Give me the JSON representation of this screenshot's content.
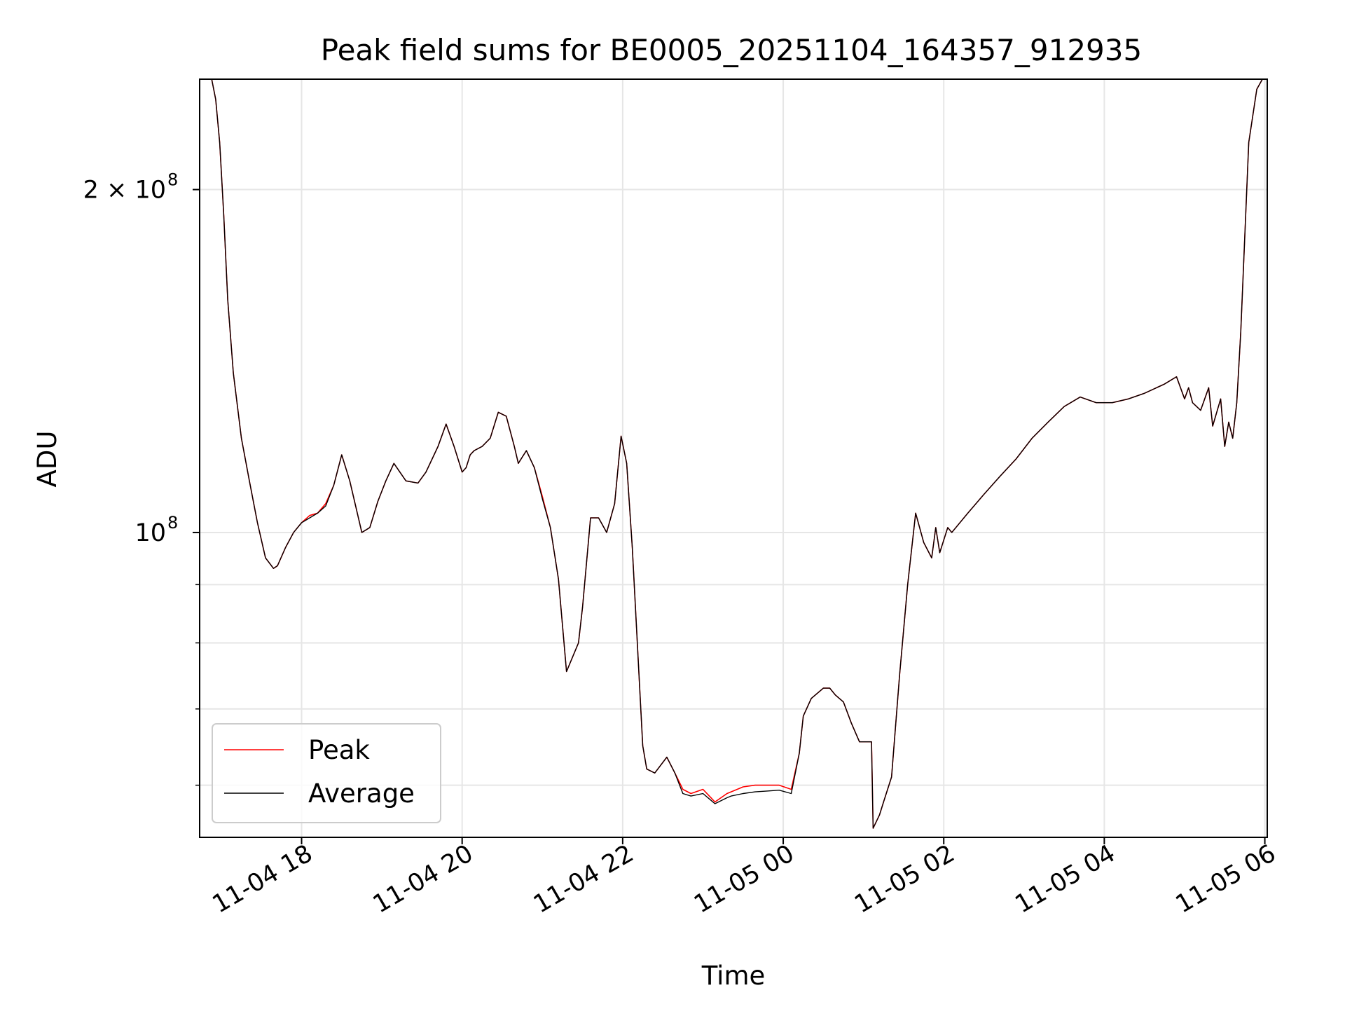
{
  "chart_data": {
    "type": "line",
    "title": "Peak field sums for BE0005_20251104_164357_912935",
    "xlabel": "Time",
    "ylabel": "ADU",
    "x_ticks": [
      "11-04 18",
      "11-04 20",
      "11-04 22",
      "11-05 00",
      "11-05 02",
      "11-05 04",
      "11-05 06"
    ],
    "y_ticks": [
      {
        "value": 200000000,
        "label": "2 × 10",
        "exponent": "8"
      },
      {
        "value": 100000000,
        "label": "10",
        "exponent": "8"
      }
    ],
    "y_scale": "log",
    "xlim_hours": [
      16.73,
      30.03
    ],
    "ylim": [
      54000000,
      250000000
    ],
    "x_origin_date": "2025-11-04",
    "grid": true,
    "legend_position": "lower-left",
    "legend": [
      "Peak",
      "Average"
    ],
    "series": [
      {
        "name": "Peak",
        "color": "#ff0000",
        "x": [
          16.88,
          16.93,
          16.98,
          17.03,
          17.08,
          17.15,
          17.25,
          17.35,
          17.45,
          17.55,
          17.65,
          17.7,
          17.8,
          17.9,
          18.0,
          18.1,
          18.2,
          18.3,
          18.4,
          18.5,
          18.6,
          18.75,
          18.85,
          18.95,
          19.05,
          19.15,
          19.3,
          19.45,
          19.55,
          19.7,
          19.8,
          19.9,
          20.0,
          20.05,
          20.1,
          20.15,
          20.25,
          20.35,
          20.45,
          20.55,
          20.65,
          20.7,
          20.8,
          20.9,
          21.0,
          21.1,
          21.2,
          21.3,
          21.45,
          21.5,
          21.6,
          21.7,
          21.8,
          21.9,
          21.98,
          22.05,
          22.12,
          22.25,
          22.3,
          22.4,
          22.55,
          22.65,
          22.75,
          22.85,
          23.0,
          23.15,
          23.3,
          23.35,
          23.5,
          23.65,
          23.8,
          23.95,
          24.1,
          24.2,
          24.25,
          24.35,
          24.5,
          24.58,
          24.65,
          24.75,
          24.85,
          24.95,
          25.1,
          25.12,
          25.2,
          25.25,
          25.35,
          25.45,
          25.55,
          25.65,
          25.75,
          25.85,
          25.9,
          25.95,
          26.05,
          26.1,
          26.3,
          26.5,
          26.7,
          26.9,
          27.1,
          27.3,
          27.5,
          27.7,
          27.9,
          28.1,
          28.3,
          28.5,
          28.75,
          28.9,
          29.0,
          29.05,
          29.1,
          29.2,
          29.3,
          29.35,
          29.45,
          29.5,
          29.55,
          29.6,
          29.65,
          29.7,
          29.8,
          29.9,
          29.97
        ],
        "y": [
          250000000,
          240000000,
          220000000,
          190000000,
          160000000,
          138000000,
          121000000,
          111000000,
          102000000,
          95000000,
          93000000,
          93500000,
          97000000,
          100000000,
          102000000,
          103500000,
          104000000,
          106000000,
          110000000,
          117000000,
          111000000,
          100000000,
          101000000,
          106500000,
          111000000,
          115000000,
          111000000,
          110500000,
          113000000,
          119000000,
          124500000,
          119000000,
          113000000,
          114000000,
          117000000,
          118000000,
          119000000,
          121000000,
          127500000,
          126500000,
          119000000,
          115000000,
          118000000,
          114000000,
          107500000,
          101000000,
          91000000,
          75500000,
          80000000,
          86000000,
          103000000,
          103000000,
          100000000,
          106000000,
          121500000,
          115000000,
          97000000,
          65000000,
          62000000,
          61500000,
          63500000,
          61500000,
          59500000,
          59000000,
          59500000,
          58000000,
          59000000,
          59200000,
          59800000,
          60000000,
          60000000,
          60000000,
          59500000,
          64000000,
          69000000,
          71500000,
          73000000,
          73000000,
          72000000,
          71000000,
          68000000,
          65500000,
          65500000,
          55000000,
          56500000,
          58000000,
          61000000,
          75000000,
          90000000,
          104000000,
          98000000,
          95000000,
          101000000,
          96000000,
          101000000,
          100000000,
          104000000,
          108000000,
          112000000,
          116000000,
          121000000,
          125000000,
          129000000,
          131500000,
          130000000,
          130000000,
          131000000,
          132500000,
          135000000,
          137000000,
          131000000,
          134000000,
          130000000,
          128000000,
          134000000,
          124000000,
          131000000,
          119000000,
          125000000,
          121000000,
          130000000,
          150000000,
          220000000,
          245000000,
          250000000
        ]
      },
      {
        "name": "Average",
        "color": "#000000",
        "x": [
          16.88,
          16.93,
          16.98,
          17.03,
          17.08,
          17.15,
          17.25,
          17.35,
          17.45,
          17.55,
          17.65,
          17.7,
          17.8,
          17.9,
          18.0,
          18.1,
          18.2,
          18.3,
          18.4,
          18.5,
          18.6,
          18.75,
          18.85,
          18.95,
          19.05,
          19.15,
          19.3,
          19.45,
          19.55,
          19.7,
          19.8,
          19.9,
          20.0,
          20.05,
          20.1,
          20.15,
          20.25,
          20.35,
          20.45,
          20.55,
          20.65,
          20.7,
          20.8,
          20.9,
          21.0,
          21.1,
          21.2,
          21.3,
          21.45,
          21.5,
          21.6,
          21.7,
          21.8,
          21.9,
          21.98,
          22.05,
          22.12,
          22.25,
          22.3,
          22.4,
          22.55,
          22.65,
          22.75,
          22.85,
          23.0,
          23.15,
          23.3,
          23.35,
          23.5,
          23.65,
          23.8,
          23.95,
          24.1,
          24.2,
          24.25,
          24.35,
          24.5,
          24.58,
          24.65,
          24.75,
          24.85,
          24.95,
          25.1,
          25.12,
          25.2,
          25.25,
          25.35,
          25.45,
          25.55,
          25.65,
          25.75,
          25.85,
          25.9,
          25.95,
          26.05,
          26.1,
          26.3,
          26.5,
          26.7,
          26.9,
          27.1,
          27.3,
          27.5,
          27.7,
          27.9,
          28.1,
          28.3,
          28.5,
          28.75,
          28.9,
          29.0,
          29.05,
          29.1,
          29.2,
          29.3,
          29.35,
          29.45,
          29.5,
          29.55,
          29.6,
          29.65,
          29.7,
          29.8,
          29.9,
          29.97
        ],
        "y": [
          250000000,
          240000000,
          220000000,
          190000000,
          160000000,
          138000000,
          121000000,
          111000000,
          102000000,
          95000000,
          93000000,
          93500000,
          97000000,
          100000000,
          102000000,
          103000000,
          104000000,
          105500000,
          110000000,
          117000000,
          111000000,
          100000000,
          101000000,
          106500000,
          111000000,
          115000000,
          111000000,
          110500000,
          113000000,
          119000000,
          124500000,
          119000000,
          113000000,
          114000000,
          117000000,
          118000000,
          119000000,
          121000000,
          127500000,
          126500000,
          119000000,
          115000000,
          118000000,
          114000000,
          107000000,
          101000000,
          91000000,
          75500000,
          80000000,
          86000000,
          103000000,
          103000000,
          100000000,
          106000000,
          121500000,
          115000000,
          97000000,
          65000000,
          62000000,
          61500000,
          63500000,
          61500000,
          59000000,
          58700000,
          59000000,
          57800000,
          58500000,
          58700000,
          59000000,
          59200000,
          59300000,
          59400000,
          59000000,
          64000000,
          69000000,
          71500000,
          73000000,
          73000000,
          72000000,
          71000000,
          68000000,
          65500000,
          65500000,
          55000000,
          56500000,
          58000000,
          61000000,
          75000000,
          90000000,
          104000000,
          98000000,
          95000000,
          101000000,
          96000000,
          101000000,
          100000000,
          104000000,
          108000000,
          112000000,
          116000000,
          121000000,
          125000000,
          129000000,
          131500000,
          130000000,
          130000000,
          131000000,
          132500000,
          135000000,
          137000000,
          131000000,
          134000000,
          130000000,
          128000000,
          134000000,
          124000000,
          131000000,
          119000000,
          125000000,
          121000000,
          130000000,
          150000000,
          220000000,
          245000000,
          250000000
        ]
      }
    ]
  }
}
